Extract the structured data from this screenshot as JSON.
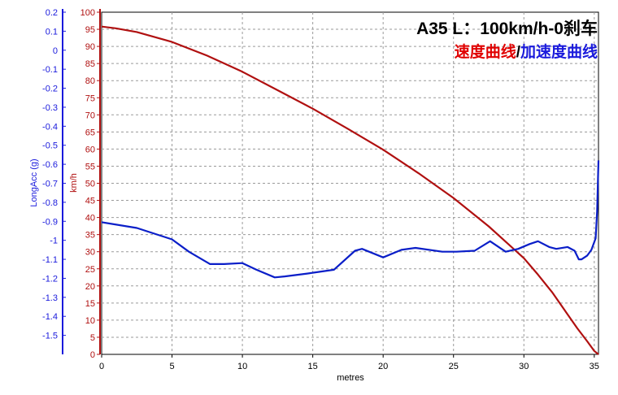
{
  "chart_data": {
    "type": "line",
    "title": "A35 L：100km/h-0刹车",
    "subtitle": {
      "speed_part": "速度曲线",
      "separator": "/",
      "acc_part": "加速度曲线"
    },
    "xlabel": "metres",
    "ylabel_left": "LongAcc (g)",
    "ylabel_right": "km/h",
    "x_ticks": [
      "0",
      "5",
      "10",
      "15",
      "20",
      "25",
      "30",
      "35"
    ],
    "acc_ticks": [
      "0.2",
      "0.1",
      "0",
      "-0.1",
      "-0.2",
      "-0.3",
      "-0.4",
      "-0.5",
      "-0.6",
      "-0.7",
      "-0.8",
      "-0.9",
      "-1",
      "-1.1",
      "-1.2",
      "-1.3",
      "-1.4",
      "-1.5"
    ],
    "speed_ticks": [
      "100",
      "95",
      "90",
      "85",
      "80",
      "75",
      "70",
      "65",
      "60",
      "55",
      "50",
      "45",
      "40",
      "35",
      "30",
      "25",
      "20",
      "15",
      "10",
      "5",
      "0"
    ],
    "xlim": [
      0,
      35.3
    ],
    "acc_lim": [
      -1.6,
      0.2
    ],
    "speed_lim": [
      0,
      100
    ],
    "grid": true,
    "colors": {
      "speed": "#b01010",
      "acc": "#0a1ec8",
      "left_axis": "#1a1adc",
      "right_axis": "#b01010",
      "grid": "#9a9a9a",
      "title_speed": "#e00000",
      "title_acc": "#1a1adc",
      "title_black": "#000000"
    },
    "series": [
      {
        "key": "speed",
        "axis": "right",
        "x": [
          0,
          1,
          2.5,
          5,
          7.5,
          10,
          12.5,
          15,
          17.5,
          20,
          22.5,
          25,
          27.5,
          30,
          31,
          32,
          33,
          33.8,
          34.5,
          35,
          35.3
        ],
        "y": [
          95.8,
          95.3,
          94.2,
          91.3,
          87.3,
          82.6,
          77.2,
          71.8,
          65.9,
          59.8,
          53.0,
          45.7,
          37.4,
          28.1,
          23.3,
          18.2,
          12.3,
          7.6,
          3.8,
          1.0,
          0
        ]
      },
      {
        "key": "acc",
        "axis": "left",
        "x": [
          0,
          2.5,
          5,
          6.2,
          7.7,
          8.7,
          10,
          11,
          12.3,
          13,
          14.6,
          16.5,
          18,
          18.5,
          20,
          21.3,
          22.3,
          24.2,
          25.2,
          26.5,
          27.6,
          28.7,
          29.6,
          30.4,
          31,
          31.8,
          32.3,
          33.1,
          33.6,
          33.9,
          34.1,
          34.5,
          34.8,
          35.1,
          35.2,
          35.3
        ],
        "y": [
          -0.905,
          -0.935,
          -0.995,
          -1.06,
          -1.125,
          -1.125,
          -1.12,
          -1.155,
          -1.195,
          -1.19,
          -1.175,
          -1.155,
          -1.055,
          -1.045,
          -1.09,
          -1.05,
          -1.04,
          -1.06,
          -1.06,
          -1.055,
          -1.005,
          -1.06,
          -1.045,
          -1.02,
          -1.005,
          -1.035,
          -1.045,
          -1.035,
          -1.055,
          -1.1,
          -1.1,
          -1.08,
          -1.05,
          -0.99,
          -0.85,
          -0.58
        ]
      }
    ]
  }
}
